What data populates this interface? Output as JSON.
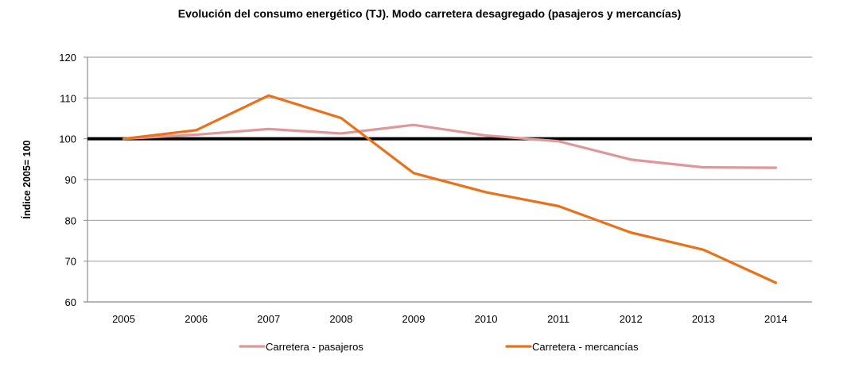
{
  "chart_data": {
    "type": "line",
    "title": "Evolución del consumo energético (TJ). Modo carretera desagregado (pasajeros y mercancías)",
    "xlabel": "",
    "ylabel": "Índice 2005= 100",
    "categories": [
      "2005",
      "2006",
      "2007",
      "2008",
      "2009",
      "2010",
      "2011",
      "2012",
      "2013",
      "2014"
    ],
    "ylim": [
      60,
      120
    ],
    "yticks": [
      60,
      70,
      80,
      90,
      100,
      110,
      120
    ],
    "grid": true,
    "reference_line": {
      "value": 100,
      "color": "#000000"
    },
    "legend_position": "bottom",
    "series": [
      {
        "name": "Carretera - pasajeros",
        "color": "#E0979A",
        "values": [
          100,
          101.0,
          102.4,
          101.3,
          103.4,
          100.8,
          99.4,
          94.9,
          93.0,
          92.9
        ]
      },
      {
        "name": "Carretera - mercancías",
        "color": "#E8711A",
        "values": [
          100,
          102.1,
          110.6,
          105.1,
          91.6,
          86.9,
          83.5,
          77.0,
          72.8,
          64.7
        ]
      }
    ]
  }
}
